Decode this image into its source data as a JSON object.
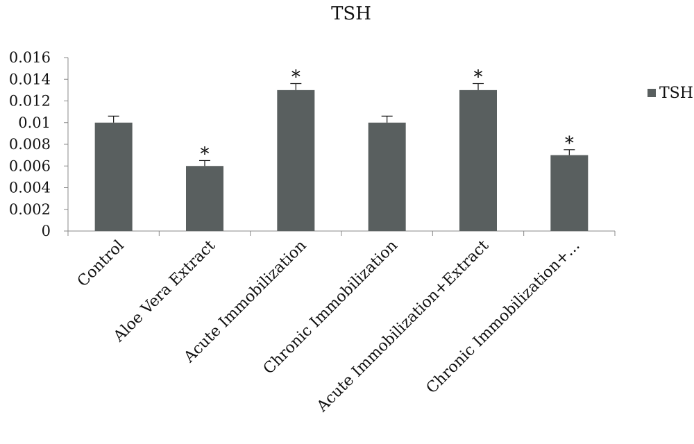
{
  "chart_data": {
    "type": "bar",
    "title": "TSH",
    "categories": [
      "Control",
      "Aloe Vera Extract",
      "Acute Immobilization",
      "Chronic Immobilization",
      "Acute Immobilization+Extract",
      "Chronic Immobilization+..."
    ],
    "series": [
      {
        "name": "TSH",
        "color": "#595f5f",
        "values": [
          0.01,
          0.006,
          0.013,
          0.01,
          0.013,
          0.007
        ],
        "errors": [
          0.0006,
          0.0005,
          0.0006,
          0.0006,
          0.0006,
          0.0005
        ],
        "significance": [
          "",
          "*",
          "*",
          "",
          "*",
          "*"
        ]
      }
    ],
    "ylim": [
      0,
      0.016
    ],
    "yticks": [
      "0",
      "0.002",
      "0.004",
      "0.006",
      "0.008",
      "0.01",
      "0.012",
      "0.014",
      "0.016"
    ],
    "xlabel": "",
    "ylabel": "",
    "grid": false,
    "legend_position": "right"
  }
}
